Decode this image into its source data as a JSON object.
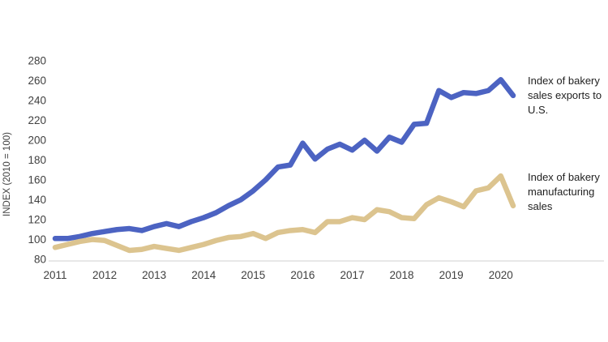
{
  "chart_data": {
    "type": "line",
    "title": "",
    "xlabel": "",
    "ylabel": "INDEX (2010 = 100)",
    "x_frequency": "quarterly",
    "x_range": [
      "2011 Q1",
      "2020 Q2"
    ],
    "x_tick_labels": [
      "2011",
      "2012",
      "2013",
      "2014",
      "2015",
      "2016",
      "2017",
      "2018",
      "2019",
      "2020"
    ],
    "ylim": [
      80,
      280
    ],
    "ytick_step": 20,
    "grid": "off",
    "legend_position": "right-end-annotations",
    "series": [
      {
        "name": "Index of bakery sales exports to U.S.",
        "color": "#4c63c2",
        "values": [
          101,
          101,
          103,
          106,
          108,
          110,
          111,
          109,
          113,
          116,
          113,
          118,
          122,
          127,
          134,
          140,
          149,
          160,
          173,
          175,
          197,
          181,
          191,
          196,
          190,
          200,
          189,
          203,
          198,
          216,
          217,
          250,
          243,
          248,
          247,
          250,
          261,
          245
        ]
      },
      {
        "name": "Index of bakery manufacturing sales",
        "color": "#dcc48f",
        "values": [
          92,
          95,
          98,
          100,
          99,
          94,
          89,
          90,
          93,
          91,
          89,
          92,
          95,
          99,
          102,
          103,
          106,
          101,
          107,
          109,
          110,
          107,
          118,
          118,
          122,
          120,
          130,
          128,
          122,
          121,
          135,
          142,
          138,
          133,
          149,
          152,
          164,
          134
        ]
      }
    ]
  },
  "annotations": {
    "exports_label": "Index of bakery sales exports to U.S.",
    "manufacturing_label": "Index of bakery manufacturing sales"
  },
  "axis": {
    "y_title": "INDEX (2010 = 100)"
  },
  "colors": {
    "axis_line": "#d9d9d9",
    "tick_text": "#404040",
    "annotation_text": "#1f1f1f",
    "exports_line": "#4c63c2",
    "manufacturing_line": "#dcc48f"
  }
}
